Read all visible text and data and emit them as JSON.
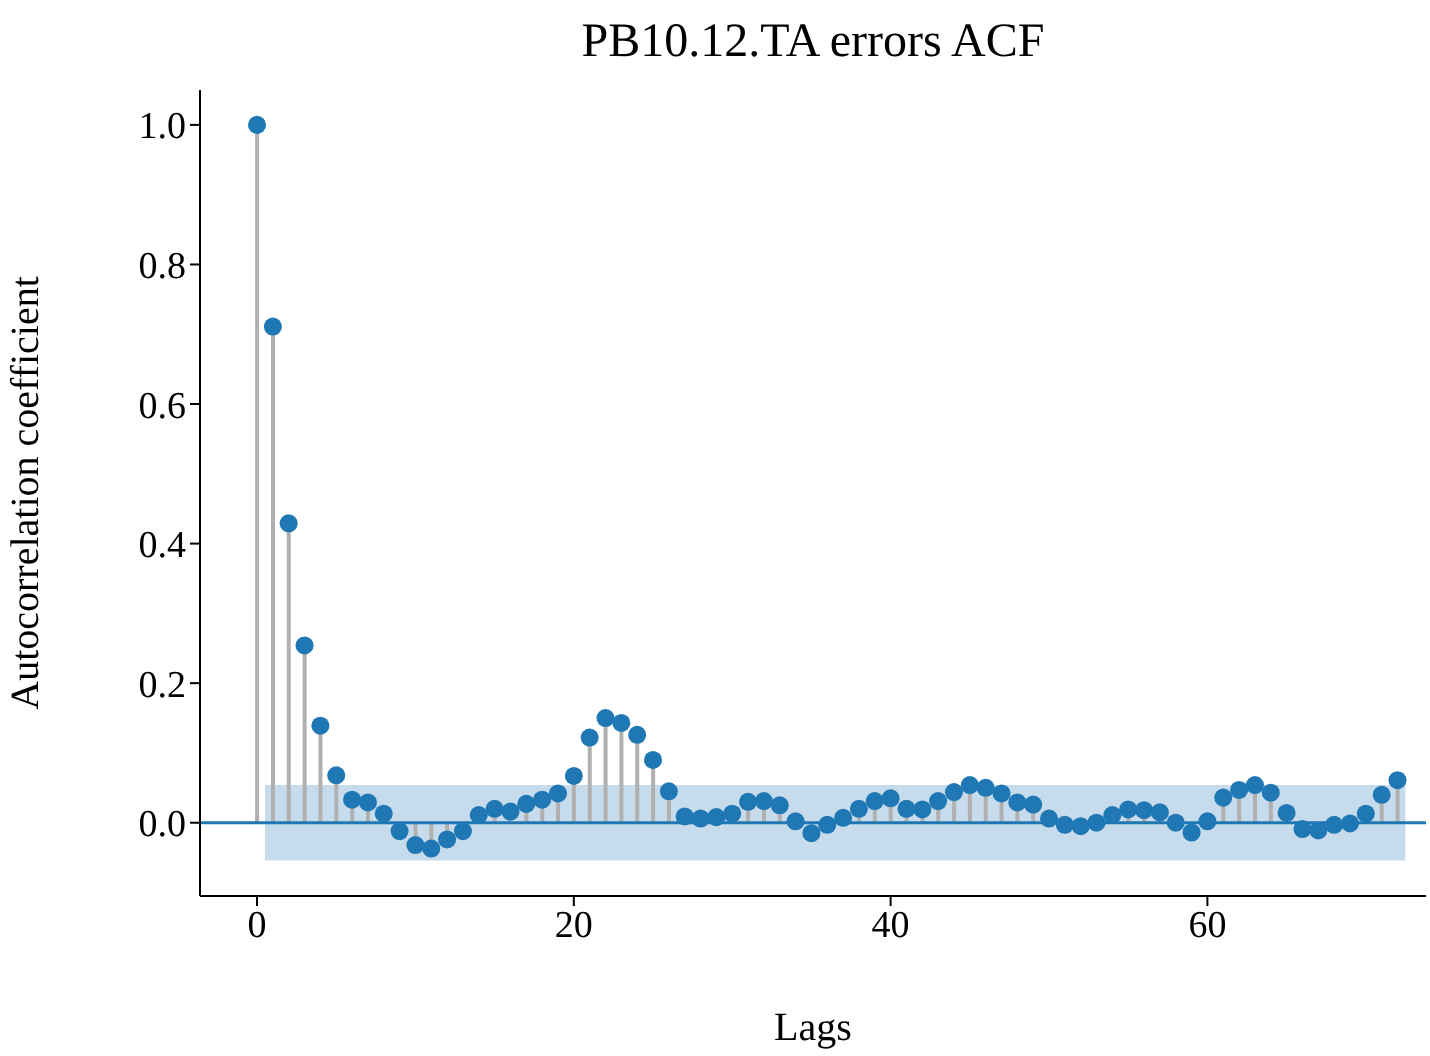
{
  "chart_data": {
    "type": "lollipop",
    "title": "PB10.12.TA errors ACF",
    "xlabel": "Lags",
    "ylabel": "Autocorrelation coefficient",
    "x": [
      0,
      1,
      2,
      3,
      4,
      5,
      6,
      7,
      8,
      9,
      10,
      11,
      12,
      13,
      14,
      15,
      16,
      17,
      18,
      19,
      20,
      21,
      22,
      23,
      24,
      25,
      26,
      27,
      28,
      29,
      30,
      31,
      32,
      33,
      34,
      35,
      36,
      37,
      38,
      39,
      40,
      41,
      42,
      43,
      44,
      45,
      46,
      47,
      48,
      49,
      50,
      51,
      52,
      53,
      54,
      55,
      56,
      57,
      58,
      59,
      60,
      61,
      62,
      63,
      64,
      65,
      66,
      67,
      68,
      69,
      70,
      71,
      72
    ],
    "series": [
      {
        "color": "#1f77b4",
        "values": [
          1.0,
          0.711,
          0.429,
          0.254,
          0.139,
          0.068,
          0.033,
          0.029,
          0.013,
          -0.012,
          -0.032,
          -0.037,
          -0.024,
          -0.012,
          0.011,
          0.02,
          0.016,
          0.027,
          0.033,
          0.042,
          0.067,
          0.122,
          0.15,
          0.143,
          0.126,
          0.09,
          0.045,
          0.009,
          0.006,
          0.008,
          0.013,
          0.03,
          0.031,
          0.025,
          0.002,
          -0.015,
          -0.003,
          0.007,
          0.02,
          0.031,
          0.035,
          0.02,
          0.019,
          0.031,
          0.044,
          0.054,
          0.05,
          0.042,
          0.029,
          0.026,
          0.006,
          -0.003,
          -0.005,
          0,
          0.011,
          0.019,
          0.018,
          0.015,
          0,
          -0.014,
          0.002,
          0.036,
          0.047,
          0.054,
          0.043,
          0.014,
          -0.009,
          -0.011,
          -0.003,
          -0.001,
          0.013,
          0.04,
          0.061
        ]
      }
    ],
    "bands": [
      {
        "axis": "y",
        "from": -0.054,
        "to": 0.054,
        "color": "#c6dbeb"
      }
    ],
    "ref_lines": [
      {
        "axis": "y",
        "value": 0,
        "color": "#1f77b4"
      }
    ],
    "xlim": [
      -3.6,
      73.8
    ],
    "xticks": [
      0,
      20,
      40,
      60
    ],
    "ylim": [
      -0.105,
      1.05
    ],
    "yticks": [
      {
        "value": 0,
        "label": "0.0"
      },
      {
        "value": 0.2,
        "label": "0.2"
      },
      {
        "value": 0.4,
        "label": "0.4"
      },
      {
        "value": 0.6,
        "label": "0.6"
      },
      {
        "value": 0.8,
        "label": "0.8"
      },
      {
        "value": 1,
        "label": "1.0"
      }
    ],
    "grid": false,
    "legend": false,
    "marker": "circle"
  }
}
